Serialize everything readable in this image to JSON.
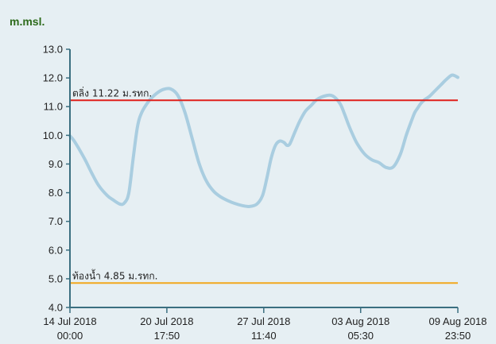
{
  "chart_data": {
    "type": "line",
    "unit_label": "m.msl.",
    "ylim": [
      4.0,
      13.0
    ],
    "y_ticks": [
      "4.0",
      "5.0",
      "6.0",
      "7.0",
      "8.0",
      "9.0",
      "10.0",
      "11.0",
      "12.0",
      "13.0"
    ],
    "x_ticks": [
      {
        "date": "14 Jul 2018",
        "time": "00:00",
        "day": 0
      },
      {
        "date": "20 Jul 2018",
        "time": "17:50",
        "day": 6.743
      },
      {
        "date": "27 Jul 2018",
        "time": "11:40",
        "day": 13.486
      },
      {
        "date": "03 Aug 2018",
        "time": "05:30",
        "day": 20.229
      },
      {
        "date": "09 Aug 2018",
        "time": "23:50",
        "day": 26.993
      }
    ],
    "x_range_days": [
      0,
      26.993
    ],
    "reference_lines": [
      {
        "label": "ตลิ่ง 11.22 ม.รทก.",
        "value": 11.22,
        "color": "#e0201b"
      },
      {
        "label": "ท้องน้ำ 4.85 ม.รทก.",
        "value": 4.85,
        "color": "#f2a81d"
      }
    ],
    "series": [
      {
        "color": "#a9cde0",
        "x_days": [
          0,
          0.3,
          1,
          1.5,
          2,
          2.6,
          3,
          3.5,
          3.8,
          4.1,
          4.4,
          4.7,
          5,
          5.5,
          6,
          6.5,
          7,
          7.5,
          8,
          8.5,
          9,
          9.5,
          10,
          10.5,
          11,
          11.5,
          12,
          12.5,
          13,
          13.4,
          13.7,
          14,
          14.3,
          14.6,
          14.9,
          15.1,
          15.3,
          15.6,
          15.9,
          16.1,
          16.4,
          16.8,
          17.2,
          17.8,
          18.3,
          18.8,
          19.1,
          19.4,
          19.7,
          20,
          20.5,
          21,
          21.5,
          22,
          22.5,
          23,
          23.4,
          23.8,
          24,
          24.2,
          24.4,
          24.7,
          25,
          25.4,
          25.8,
          26.2,
          26.6,
          26.99
        ],
        "values": [
          9.98,
          9.8,
          9.2,
          8.7,
          8.25,
          7.9,
          7.75,
          7.6,
          7.65,
          8.0,
          9.2,
          10.3,
          10.8,
          11.2,
          11.45,
          11.6,
          11.62,
          11.4,
          10.8,
          9.9,
          9.0,
          8.4,
          8.05,
          7.85,
          7.72,
          7.62,
          7.55,
          7.52,
          7.6,
          7.9,
          8.5,
          9.2,
          9.65,
          9.8,
          9.75,
          9.65,
          9.7,
          10.05,
          10.4,
          10.6,
          10.85,
          11.05,
          11.25,
          11.38,
          11.37,
          11.1,
          10.75,
          10.35,
          10.0,
          9.7,
          9.35,
          9.15,
          9.05,
          8.88,
          8.9,
          9.35,
          10.0,
          10.55,
          10.8,
          10.95,
          11.1,
          11.25,
          11.35,
          11.55,
          11.75,
          11.95,
          12.1,
          12.02
        ]
      }
    ],
    "grid": false,
    "legend": "none"
  }
}
